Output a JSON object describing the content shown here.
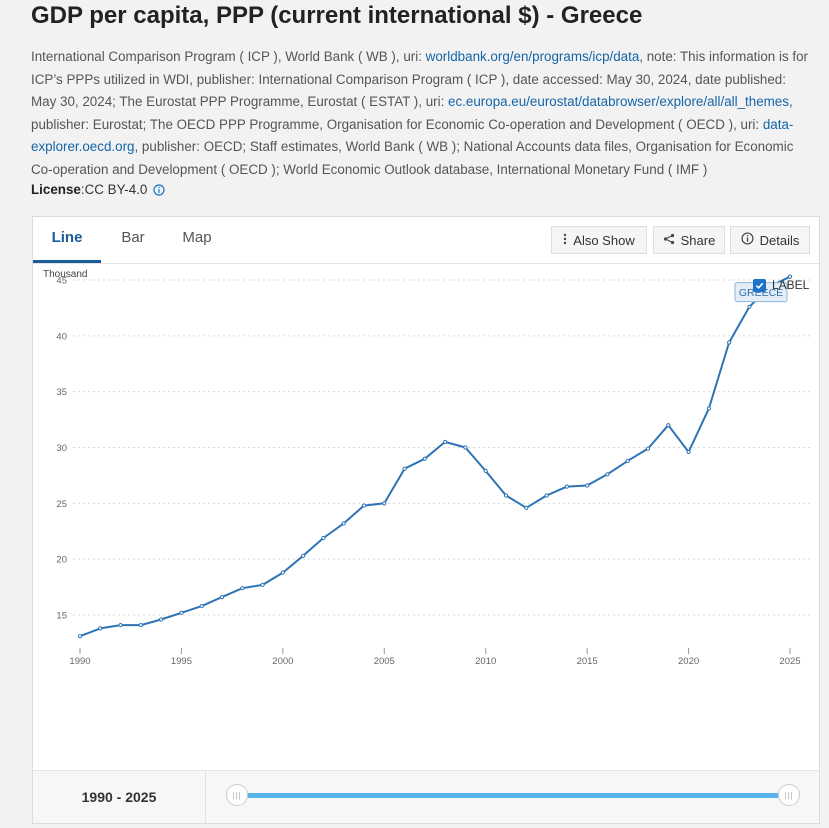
{
  "title": "GDP per capita, PPP (current international $) - Greece",
  "meta": {
    "p1": "International Comparison Program ( ICP ), World Bank ( WB ), uri: ",
    "link1": "worldbank.org/en/programs/icp/data",
    "p2": ", note: This information is for ICP’s PPPs utilized in WDI, publisher: International Comparison Program ( ICP ), date accessed: May 30, 2024, date published: May 30, 2024; The Eurostat PPP Programme, Eurostat ( ESTAT ), uri: ",
    "link2": "ec.europa.eu/eurostat/databrowser/explore/all/all_themes",
    "p3": ", publisher: Eurostat; The OECD PPP Programme, Organisation for Economic Co-operation and Development ( OECD ), uri: ",
    "link3": "data-explorer.oecd.org",
    "p4": ", publisher: OECD; Staff estimates, World Bank ( WB ); National Accounts data files, Organisation for Economic Co-operation and Development ( OECD ); World Economic Outlook database, International Monetary Fund ( IMF )"
  },
  "license": {
    "label": "License",
    "sep": " : ",
    "value": "CC BY-4.0"
  },
  "tabs": [
    "Line",
    "Bar",
    "Map"
  ],
  "buttons": {
    "also_show": "Also Show",
    "share": "Share",
    "details": "Details"
  },
  "legend_checkbox_label": "LABEL",
  "range_label": "1990 - 2025",
  "colors": {
    "line": "#2e74b5",
    "accent": "#1a5c99",
    "slider": "#56b4ea"
  },
  "chart_data": {
    "type": "line",
    "title": "GDP per capita, PPP (current international $) - Greece",
    "ylabel": "Thousand",
    "xlabel": "",
    "ylim": [
      10,
      45
    ],
    "yticks": [
      15,
      20,
      25,
      30,
      35,
      40,
      45
    ],
    "xticks": [
      1990,
      1995,
      2000,
      2005,
      2010,
      2015,
      2020,
      2025
    ],
    "xlim": [
      1990,
      2025
    ],
    "grid": true,
    "legend": "top-right",
    "series": [
      {
        "name": "GREECE",
        "x": [
          1990,
          1991,
          1992,
          1993,
          1994,
          1995,
          1996,
          1997,
          1998,
          1999,
          2000,
          2001,
          2002,
          2003,
          2004,
          2005,
          2006,
          2007,
          2008,
          2009,
          2010,
          2011,
          2012,
          2013,
          2014,
          2015,
          2016,
          2017,
          2018,
          2019,
          2020,
          2021,
          2022,
          2023,
          2024,
          2025
        ],
        "values": [
          13.1,
          13.8,
          14.1,
          14.1,
          14.6,
          15.2,
          15.8,
          16.6,
          17.4,
          17.7,
          18.8,
          20.3,
          21.9,
          23.2,
          24.8,
          25.0,
          28.1,
          29.0,
          30.5,
          30.0,
          27.9,
          25.7,
          24.6,
          25.7,
          26.5,
          26.6,
          27.6,
          28.8,
          29.9,
          32.0,
          29.6,
          33.5,
          39.4,
          42.6,
          44.4,
          45.3
        ]
      }
    ]
  }
}
